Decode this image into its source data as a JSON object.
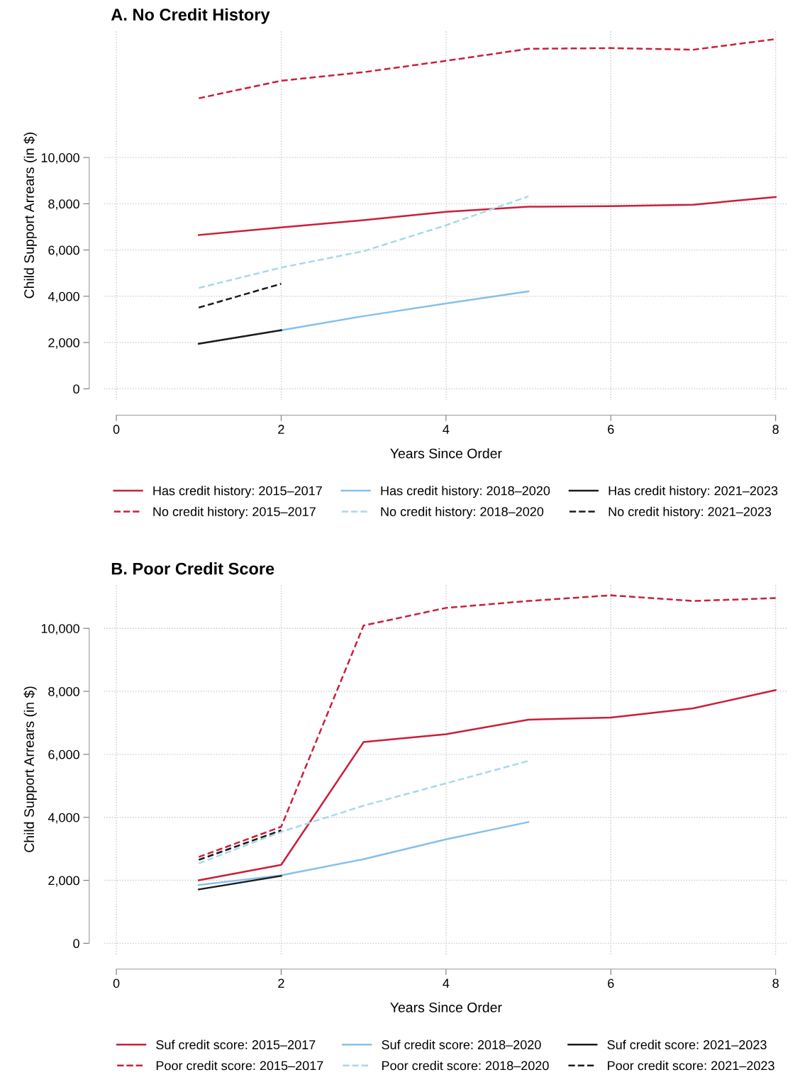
{
  "chart_data": [
    {
      "type": "line",
      "title": "A. No Credit History",
      "xlabel": "Years Since Order",
      "ylabel": "Child Support Arrears (in $)",
      "x": [
        1,
        2,
        3,
        4,
        5,
        6,
        7,
        8
      ],
      "xlim": [
        -0.15,
        8.15
      ],
      "xticks": [
        0,
        2,
        4,
        6,
        8
      ],
      "ylim": [
        -500,
        15500
      ],
      "yticks": [
        {
          "value": 0,
          "label": "0"
        },
        {
          "value": 2000,
          "label": "2,000"
        },
        {
          "value": 4000,
          "label": "4,000"
        },
        {
          "value": 6000,
          "label": "6,000"
        },
        {
          "value": 8000,
          "label": "8,000"
        },
        {
          "value": 10000,
          "label": "10,000"
        }
      ],
      "grid": true,
      "legend": "bottom",
      "marker": "none",
      "series": [
        {
          "name": "Has credit history: 2015–2017",
          "color": "#c8203a",
          "line_style": "solid",
          "values": [
            6650,
            6980,
            7290,
            7650,
            7870,
            7900,
            7960,
            8290
          ]
        },
        {
          "name": "No credit history: 2015–2017",
          "color": "#c8203a",
          "line_style": "dashed",
          "values": [
            12560,
            13320,
            13690,
            14180,
            14700,
            14730,
            14660,
            15120
          ]
        },
        {
          "name": "Has credit history: 2018–2020",
          "color": "#86c0ea",
          "line_style": "solid",
          "values": [
            null,
            2530,
            3140,
            3690,
            4210,
            null,
            null,
            null
          ]
        },
        {
          "name": "No credit history: 2018–2020",
          "color": "#a8d8ea",
          "line_style": "dashed",
          "values": [
            4360,
            5240,
            5950,
            7070,
            8320,
            null,
            null,
            null
          ]
        },
        {
          "name": "Has credit history: 2021–2023",
          "color": "#1a1a1a",
          "line_style": "solid",
          "values": [
            1950,
            2530,
            null,
            null,
            null,
            null,
            null,
            null
          ]
        },
        {
          "name": "No credit history: 2021–2023",
          "color": "#1a1a1a",
          "line_style": "dashed",
          "values": [
            3510,
            4540,
            null,
            null,
            null,
            null,
            null,
            null
          ]
        }
      ]
    },
    {
      "type": "line",
      "title": "B. Poor Credit Score",
      "xlabel": "Years Since Order",
      "ylabel": "Child Support Arrears (in $)",
      "x": [
        1,
        2,
        3,
        4,
        5,
        6,
        7,
        8
      ],
      "xlim": [
        -0.15,
        8.15
      ],
      "xticks": [
        0,
        2,
        4,
        6,
        8
      ],
      "ylim": [
        -350,
        11400
      ],
      "yticks": [
        {
          "value": 0,
          "label": "0"
        },
        {
          "value": 2000,
          "label": "2,000"
        },
        {
          "value": 4000,
          "label": "4,000"
        },
        {
          "value": 6000,
          "label": "6,000"
        },
        {
          "value": 8000,
          "label": "8,000"
        },
        {
          "value": 10000,
          "label": "10,000"
        }
      ],
      "grid": true,
      "legend": "bottom",
      "marker": "none",
      "series": [
        {
          "name": "Suf credit score: 2015–2017",
          "color": "#c8203a",
          "line_style": "solid",
          "values": [
            2000,
            2490,
            6390,
            6640,
            7100,
            7170,
            7460,
            8040
          ]
        },
        {
          "name": "Poor credit score: 2015–2017",
          "color": "#c8203a",
          "line_style": "dashed",
          "values": [
            2740,
            3700,
            10090,
            10650,
            10870,
            11050,
            10870,
            10960
          ]
        },
        {
          "name": "Suf credit score: 2018–2020",
          "color": "#86c0ea",
          "line_style": "solid",
          "values": [
            1850,
            2160,
            2670,
            3300,
            3850,
            null,
            null,
            null
          ]
        },
        {
          "name": "Poor credit score: 2018–2020",
          "color": "#a8d8ea",
          "line_style": "dashed",
          "values": [
            2540,
            3540,
            4370,
            5080,
            5790,
            null,
            null,
            null
          ]
        },
        {
          "name": "Suf credit score: 2021–2023",
          "color": "#1a1a1a",
          "line_style": "solid",
          "values": [
            1710,
            2140,
            null,
            null,
            null,
            null,
            null,
            null
          ]
        },
        {
          "name": "Poor credit score: 2021–2023",
          "color": "#1a1a1a",
          "line_style": "dashed",
          "values": [
            2650,
            3590,
            null,
            null,
            null,
            null,
            null,
            null
          ]
        }
      ]
    }
  ]
}
